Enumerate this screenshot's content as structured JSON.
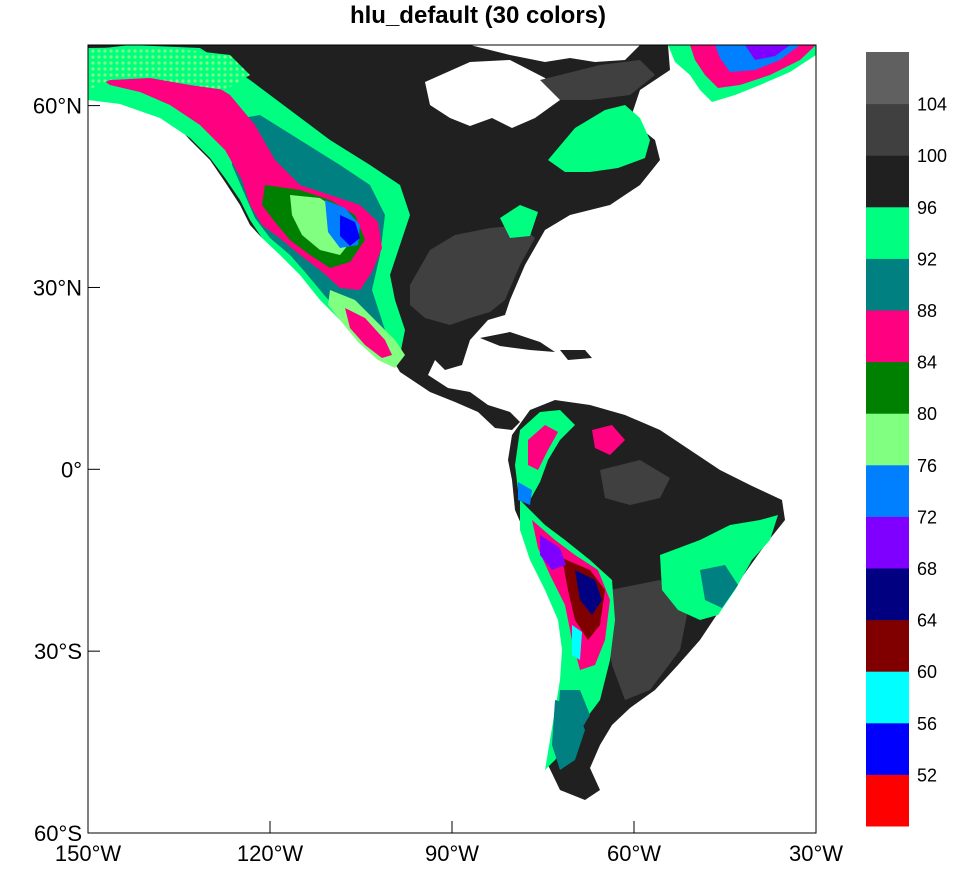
{
  "title": "hlu_default (30 colors)",
  "map": {
    "extent": {
      "lon": [
        -150,
        -30
      ],
      "lat": [
        -60,
        70
      ]
    },
    "lat_ticks": [
      {
        "value": 60,
        "label": "60°N"
      },
      {
        "value": 30,
        "label": "30°N"
      },
      {
        "value": 0,
        "label": "0°"
      },
      {
        "value": -30,
        "label": "30°S"
      },
      {
        "value": -60,
        "label": "60°S"
      }
    ],
    "lon_ticks": [
      {
        "value": -150,
        "label": "150°W"
      },
      {
        "value": -120,
        "label": "120°W"
      },
      {
        "value": -90,
        "label": "90°W"
      },
      {
        "value": -60,
        "label": "60°W"
      },
      {
        "value": -30,
        "label": "30°W"
      }
    ],
    "ocean_color": "#ffffff",
    "coastline_color": "#000000"
  },
  "colorbar": {
    "colors": [
      "#ff0000",
      "#0000ff",
      "#00ffff",
      "#800000",
      "#000080",
      "#8000ff",
      "#0080ff",
      "#80ff80",
      "#008000",
      "#ff0080",
      "#008080",
      "#00ff80",
      "#202020",
      "#404040",
      "#606060"
    ],
    "labels": [
      "52",
      "56",
      "60",
      "64",
      "68",
      "72",
      "76",
      "80",
      "84",
      "88",
      "92",
      "96",
      "100",
      "104"
    ]
  }
}
